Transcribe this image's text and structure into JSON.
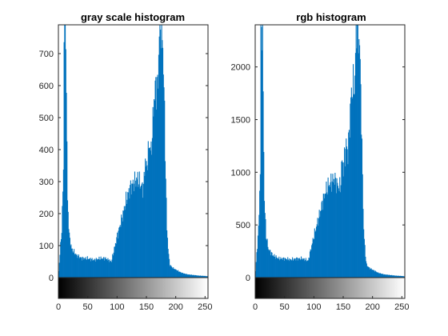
{
  "chart_data": [
    {
      "type": "bar",
      "title": "gray scale histogram",
      "bar_color": "#0072BD",
      "xlim": [
        0,
        255
      ],
      "ylim": [
        0,
        790
      ],
      "xticks": [
        0,
        50,
        100,
        150,
        200,
        250
      ],
      "yticks": [
        0,
        100,
        200,
        300,
        400,
        500,
        600,
        700
      ],
      "colorbar": "grayscale 0 to 255",
      "control_points": {
        "x": [
          0,
          2,
          5,
          8,
          9,
          10,
          11,
          12,
          13,
          15,
          18,
          22,
          30,
          40,
          50,
          60,
          70,
          80,
          90,
          100,
          110,
          115,
          120,
          125,
          130,
          135,
          140,
          145,
          148,
          150,
          155,
          158,
          160,
          163,
          165,
          168,
          170,
          172,
          175,
          178,
          180,
          182,
          185,
          188,
          190,
          195,
          200,
          210,
          220,
          230,
          240,
          250,
          255
        ],
        "y": [
          20,
          75,
          150,
          330,
          790,
          790,
          790,
          790,
          580,
          240,
          130,
          90,
          70,
          60,
          60,
          55,
          60,
          60,
          50,
          130,
          200,
          240,
          270,
          290,
          300,
          310,
          290,
          280,
          370,
          340,
          420,
          390,
          450,
          560,
          590,
          600,
          610,
          790,
          790,
          720,
          600,
          400,
          150,
          70,
          40,
          30,
          25,
          15,
          10,
          8,
          6,
          5,
          4
        ]
      }
    },
    {
      "type": "bar",
      "title": "rgb histogram",
      "bar_color": "#0072BD",
      "xlim": [
        0,
        255
      ],
      "ylim": [
        0,
        2400
      ],
      "xticks": [
        0,
        50,
        100,
        150,
        200,
        250
      ],
      "yticks": [
        0,
        500,
        1000,
        1500,
        2000
      ],
      "colorbar": "grayscale 0 to 255",
      "control_points": {
        "x": [
          0,
          2,
          5,
          8,
          9,
          10,
          11,
          12,
          13,
          15,
          18,
          22,
          30,
          40,
          50,
          60,
          70,
          80,
          90,
          100,
          110,
          115,
          120,
          125,
          130,
          135,
          140,
          145,
          148,
          150,
          155,
          158,
          160,
          163,
          165,
          168,
          170,
          172,
          175,
          178,
          180,
          182,
          185,
          188,
          190,
          195,
          200,
          210,
          220,
          230,
          240,
          250,
          255
        ],
        "y": [
          60,
          230,
          460,
          1000,
          2400,
          2400,
          2400,
          2400,
          1760,
          730,
          400,
          270,
          210,
          180,
          180,
          170,
          180,
          180,
          160,
          400,
          610,
          730,
          820,
          880,
          910,
          940,
          880,
          850,
          1120,
          1030,
          1270,
          1180,
          1360,
          1700,
          1790,
          1820,
          1850,
          2400,
          2400,
          2190,
          1820,
          1210,
          450,
          210,
          120,
          90,
          75,
          45,
          30,
          24,
          18,
          15,
          12
        ]
      }
    }
  ]
}
